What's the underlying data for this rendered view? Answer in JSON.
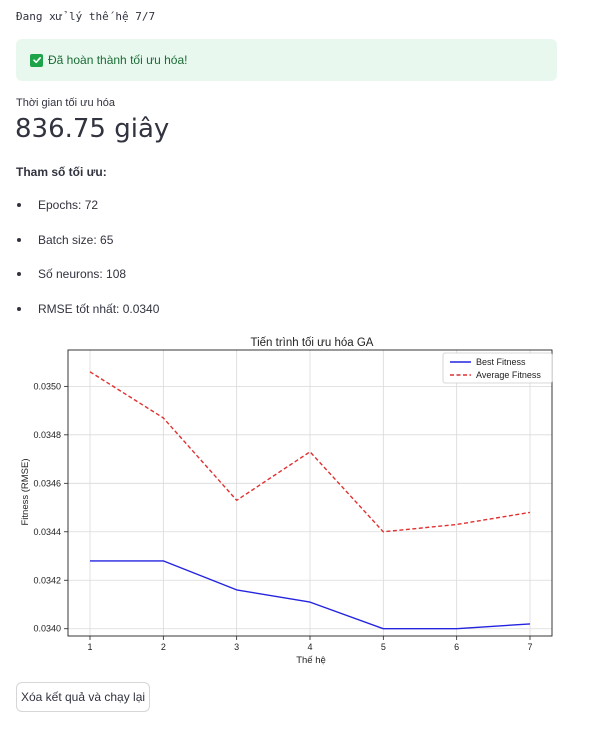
{
  "status": {
    "text": "Đang xử lý thế hệ 7/7"
  },
  "alert": {
    "text": "Đã hoàn thành tối ưu hóa!",
    "color": "#1fa34a"
  },
  "metric": {
    "label": "Thời gian tối ưu hóa",
    "value": "836.75 giây"
  },
  "params": {
    "title": "Tham số tối ưu:",
    "items": [
      {
        "label": "Epochs: 72"
      },
      {
        "label": "Batch size: 65"
      },
      {
        "label": "Số neurons: 108"
      },
      {
        "label": "RMSE tốt nhất: 0.0340"
      }
    ]
  },
  "chart_data": {
    "type": "line",
    "title": "Tiến trình tối ưu hóa GA",
    "xlabel": "Thế hệ",
    "ylabel": "Fitness (RMSE)",
    "x": [
      1,
      2,
      3,
      4,
      5,
      6,
      7
    ],
    "xlim": [
      0.7,
      7.3
    ],
    "ylim": [
      0.03397,
      0.03515
    ],
    "yticks": [
      0.034,
      0.0342,
      0.0344,
      0.0346,
      0.0348,
      0.035
    ],
    "ytick_labels": [
      "0.0340",
      "0.0342",
      "0.0344",
      "0.0346",
      "0.0348",
      "0.0350"
    ],
    "grid": true,
    "legend": "top-right",
    "series": [
      {
        "name": "Best Fitness",
        "values": [
          0.03428,
          0.03428,
          0.03416,
          0.03411,
          0.034,
          0.034,
          0.03402
        ],
        "color": "#2323e0",
        "dash": "solid"
      },
      {
        "name": "Average Fitness",
        "values": [
          0.03506,
          0.03487,
          0.03453,
          0.03473,
          0.0344,
          0.03443,
          0.03448
        ],
        "color": "#e03030",
        "dash": "dashed"
      }
    ]
  },
  "actions": {
    "reset_label": "Xóa kết quả và chạy lại"
  }
}
